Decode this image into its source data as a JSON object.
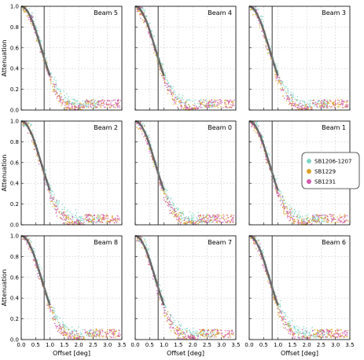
{
  "chart_data": {
    "type": "scatter",
    "layout": "3x3 grid of panels",
    "xlabel": "Offset [deg]",
    "ylabel": "Attenuation",
    "xlim": [
      0.0,
      3.5
    ],
    "ylim": [
      0.0,
      1.0
    ],
    "x_ticks": [
      "0.0",
      "0.5",
      "1.0",
      "1.5",
      "2.0",
      "2.5",
      "3.0",
      "3.5"
    ],
    "y_ticks": [
      "0.0",
      "0.2",
      "0.4",
      "0.6",
      "0.8",
      "1.0"
    ],
    "grid": true,
    "legend_panel": "Beam 1",
    "legend_placement": "right",
    "vertical_line_x": 0.8,
    "series": [
      {
        "name": "SB1206-1207",
        "color": "#7fd6c4"
      },
      {
        "name": "SB1229",
        "color": "#d9a227"
      },
      {
        "name": "SB1231",
        "color": "#d45bb0"
      }
    ],
    "model_curve_color": "#555555",
    "model_curve": [
      {
        "x": 0.0,
        "y": 1.0
      },
      {
        "x": 0.1,
        "y": 0.99
      },
      {
        "x": 0.2,
        "y": 0.96
      },
      {
        "x": 0.3,
        "y": 0.91
      },
      {
        "x": 0.4,
        "y": 0.85
      },
      {
        "x": 0.5,
        "y": 0.77
      },
      {
        "x": 0.6,
        "y": 0.68
      },
      {
        "x": 0.7,
        "y": 0.59
      },
      {
        "x": 0.8,
        "y": 0.5
      },
      {
        "x": 0.9,
        "y": 0.41
      },
      {
        "x": 1.0,
        "y": 0.33
      }
    ],
    "panels": [
      {
        "title": "Beam 5"
      },
      {
        "title": "Beam 4"
      },
      {
        "title": "Beam 3"
      },
      {
        "title": "Beam 2"
      },
      {
        "title": "Beam 0"
      },
      {
        "title": "Beam 1"
      },
      {
        "title": "Beam 8"
      },
      {
        "title": "Beam 7"
      },
      {
        "title": "Beam 6"
      }
    ]
  }
}
